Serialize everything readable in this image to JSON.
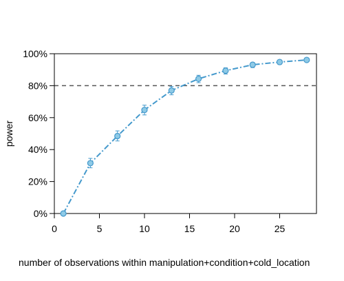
{
  "chart_data": {
    "type": "line",
    "title": "",
    "xlabel": "number of observations within manipulation+condition+cold_location",
    "ylabel": "power",
    "xlim": [
      0,
      29
    ],
    "ylim": [
      0,
      100
    ],
    "x_ticks": [
      "0",
      "5",
      "10",
      "15",
      "20",
      "25"
    ],
    "y_ticks": [
      "0%",
      "20%",
      "40%",
      "60%",
      "80%",
      "100%"
    ],
    "reference_line": {
      "y": 80,
      "style": "dashed",
      "color": "#555555"
    },
    "grid": false,
    "legend": "none",
    "series": [
      {
        "color": "#4499cc",
        "marker_fill": "#8ecae6",
        "line_style": "dash-dot",
        "x": [
          1,
          4,
          7,
          10,
          13,
          16,
          19,
          22,
          25,
          28
        ],
        "y": [
          0.0,
          31.5,
          48.5,
          64.8,
          77.0,
          84.3,
          89.4,
          93.1,
          94.8,
          96.1
        ],
        "ci_low": [
          0.0,
          28.6,
          45.4,
          61.7,
          74.3,
          81.9,
          87.3,
          91.3,
          93.3,
          94.8
        ],
        "ci_high": [
          0.4,
          34.5,
          51.7,
          67.8,
          79.5,
          86.5,
          91.2,
          94.5,
          96.0,
          97.1
        ]
      }
    ]
  }
}
